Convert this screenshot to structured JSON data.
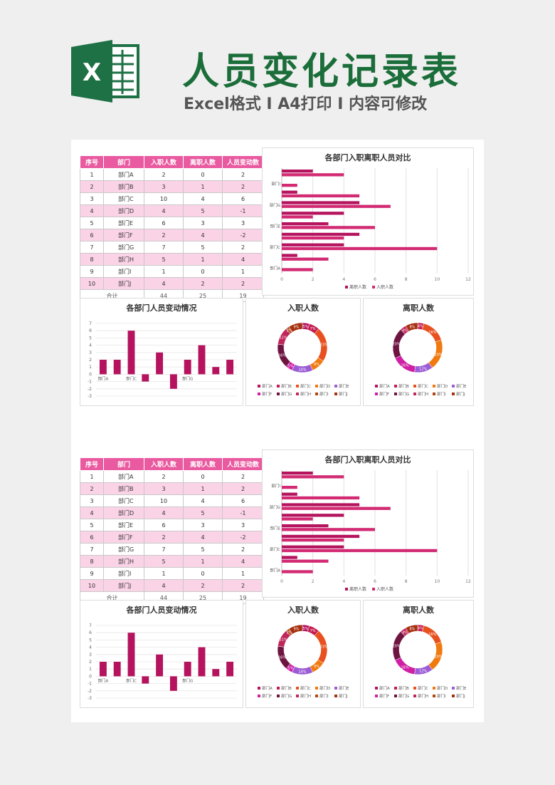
{
  "header": {
    "title": "人员变化记录表",
    "subtitle": "Excel格式 I A4打印 I 内容可修改",
    "icon": "excel-icon",
    "icon_letter": "X"
  },
  "colors": {
    "accent": "#e95aa0",
    "bar": "#b5135e",
    "bar2": "#d22a73",
    "title_green": "#1b6e3a",
    "row_alt": "#fbd3e6"
  },
  "table": {
    "headers": [
      "序号",
      "部门",
      "入职人数",
      "离职人数",
      "人员变动数"
    ],
    "rows": [
      [
        "1",
        "部门A",
        "2",
        "0",
        "2"
      ],
      [
        "2",
        "部门B",
        "3",
        "1",
        "2"
      ],
      [
        "3",
        "部门C",
        "10",
        "4",
        "6"
      ],
      [
        "4",
        "部门D",
        "4",
        "5",
        "-1"
      ],
      [
        "5",
        "部门E",
        "6",
        "3",
        "3"
      ],
      [
        "6",
        "部门F",
        "2",
        "4",
        "-2"
      ],
      [
        "7",
        "部门G",
        "7",
        "5",
        "2"
      ],
      [
        "8",
        "部门H",
        "5",
        "1",
        "4"
      ],
      [
        "9",
        "部门I",
        "1",
        "0",
        "1"
      ],
      [
        "10",
        "部门J",
        "4",
        "2",
        "2"
      ]
    ],
    "total": [
      "合计",
      "44",
      "25",
      "19"
    ]
  },
  "chart_data": [
    {
      "type": "bar",
      "orientation": "horizontal",
      "title": "各部门入职离职人员对比",
      "categories": [
        "部门A",
        "部门B",
        "部门C",
        "部门D",
        "部门E",
        "部门F",
        "部门G",
        "部门H",
        "部门I",
        "部门J"
      ],
      "category_labels": [
        "部门A",
        "部门B",
        "部门C",
        "部门D",
        "部门E",
        "部门F",
        "部门G",
        "部门H",
        "部门I",
        "部门J"
      ],
      "series": [
        {
          "name": "离职人数",
          "values": [
            0,
            1,
            4,
            5,
            3,
            4,
            5,
            1,
            0,
            2
          ]
        },
        {
          "name": "入职人数",
          "values": [
            2,
            3,
            10,
            4,
            6,
            2,
            7,
            5,
            1,
            4
          ]
        }
      ],
      "xlim": [
        0,
        12
      ],
      "xticks": [
        "0",
        "2",
        "4",
        "6",
        "8",
        "10",
        "12"
      ],
      "legend": "bottom",
      "grid": true
    },
    {
      "type": "bar",
      "title": "各部门人员变动情况",
      "categories": [
        "部门A",
        "部门B",
        "部门C",
        "部门D",
        "部门E",
        "部门F",
        "部门G",
        "部门H",
        "部门I",
        "部门J"
      ],
      "shown_labels": [
        "部门A",
        "部门C",
        "部门G"
      ],
      "values": [
        2,
        2,
        6,
        -1,
        3,
        -2,
        2,
        4,
        1,
        2
      ],
      "ylim": [
        -3,
        7
      ],
      "yticks": [
        "7",
        "6",
        "5",
        "4",
        "3",
        "2",
        "1",
        "0",
        "-1",
        "-2",
        "-3"
      ],
      "grid": true
    },
    {
      "type": "pie",
      "donut": true,
      "title": "入职人数",
      "categories": [
        "部门A",
        "部门B",
        "部门C",
        "部门D",
        "部门E",
        "部门F",
        "部门G",
        "部门H",
        "部门I",
        "部门J"
      ],
      "values": [
        2,
        3,
        10,
        4,
        6,
        2,
        7,
        5,
        1,
        4
      ],
      "slice_labels": [
        "5%",
        "7%",
        "23%",
        "9%",
        "14%",
        "5%",
        "16%",
        "11%",
        "2%",
        "9%"
      ],
      "colors": [
        "#b5135e",
        "#c41c4e",
        "#e8511f",
        "#f07a10",
        "#9b5cd6",
        "#cf1fa4",
        "#6e1440",
        "#c0265a",
        "#b04715",
        "#a63010"
      ],
      "legend": "bottom"
    },
    {
      "type": "pie",
      "donut": true,
      "title": "离职人数",
      "categories": [
        "部门A",
        "部门B",
        "部门C",
        "部门D",
        "部门E",
        "部门F",
        "部门G",
        "部门H",
        "部门I",
        "部门J"
      ],
      "values": [
        0,
        1,
        4,
        5,
        3,
        4,
        5,
        1,
        0,
        2
      ],
      "slice_labels": [
        "0%",
        "4%",
        "16%",
        "20%",
        "12%",
        "16%",
        "20%",
        "4%",
        "0%",
        "8%"
      ],
      "colors": [
        "#b5135e",
        "#c41c4e",
        "#e8511f",
        "#f07a10",
        "#9b5cd6",
        "#cf1fa4",
        "#6e1440",
        "#c0265a",
        "#b04715",
        "#a63010"
      ],
      "legend": "bottom"
    }
  ]
}
